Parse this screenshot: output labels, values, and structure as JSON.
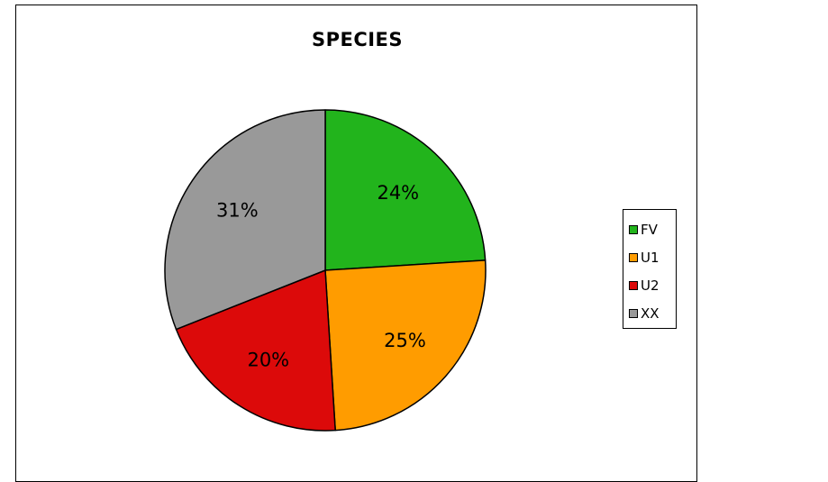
{
  "chart_data": {
    "type": "pie",
    "title": "SPECIES",
    "slices": [
      {
        "name": "FV",
        "value": 24,
        "label": "24%",
        "color": "#22b41c"
      },
      {
        "name": "U1",
        "value": 25,
        "label": "25%",
        "color": "#ff9c00"
      },
      {
        "name": "U2",
        "value": 20,
        "label": "20%",
        "color": "#dc0a0a"
      },
      {
        "name": "XX",
        "value": 31,
        "label": "31%",
        "color": "#999999"
      }
    ],
    "legend": {
      "placement": "right",
      "entries": [
        "FV",
        "U1",
        "U2",
        "XX"
      ]
    },
    "start_angle": "12 o'clock",
    "direction": "clockwise"
  }
}
